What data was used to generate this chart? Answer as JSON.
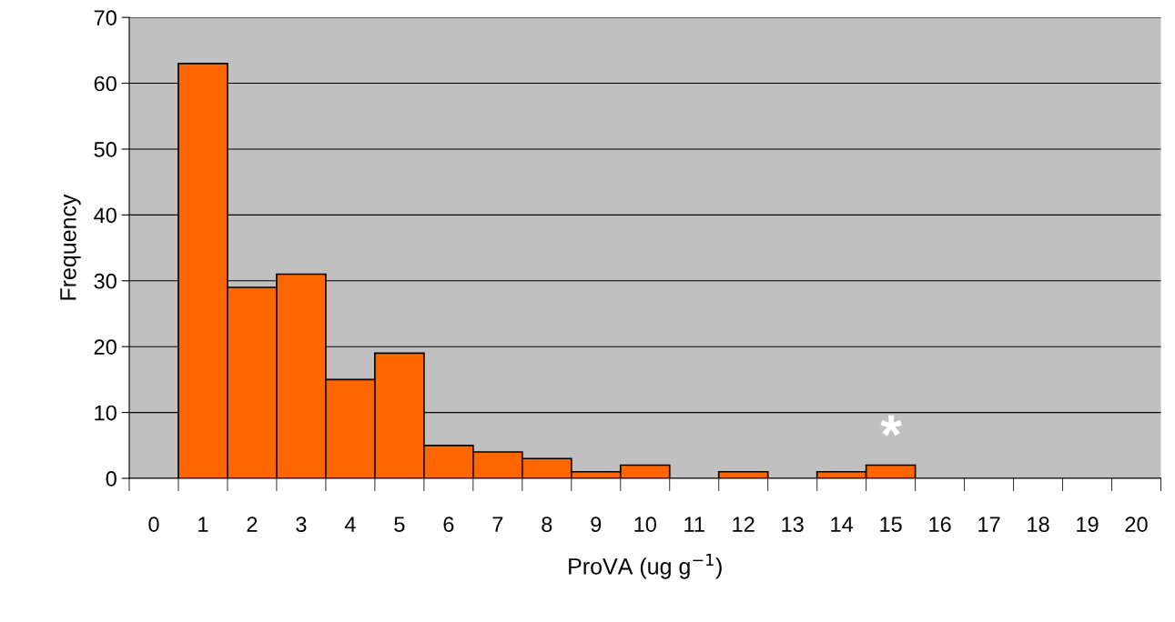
{
  "chart_data": {
    "type": "bar",
    "xlabel": "ProVA (ug g$^{−1}$)",
    "ylabel": "Frequency",
    "categories": [
      "0",
      "1",
      "2",
      "3",
      "4",
      "5",
      "6",
      "7",
      "8",
      "9",
      "10",
      "11",
      "12",
      "13",
      "14",
      "15",
      "16",
      "17",
      "18",
      "19",
      "20"
    ],
    "values": [
      null,
      63,
      29,
      31,
      15,
      19,
      5,
      4,
      3,
      1,
      2,
      null,
      1,
      null,
      1,
      2,
      null,
      null,
      null,
      null,
      null
    ],
    "color": "#ff6600",
    "ylim": [
      0,
      70
    ],
    "yticks": [
      0,
      10,
      20,
      30,
      40,
      50,
      60,
      70
    ],
    "grid": "y",
    "annotations": [
      "*"
    ]
  }
}
